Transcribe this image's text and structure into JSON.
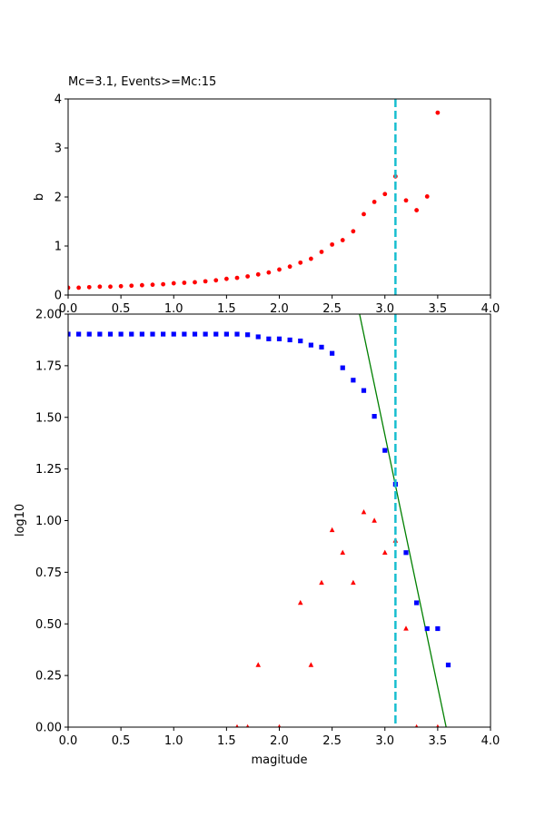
{
  "chart_data": [
    {
      "type": "scatter",
      "title": "Mc=3.1, Events>=Mc:15",
      "xlabel": "",
      "ylabel": "b",
      "xlim": [
        0,
        4
      ],
      "ylim": [
        0,
        4
      ],
      "xticks": [
        "0.0",
        "0.5",
        "1.0",
        "1.5",
        "2.0",
        "2.5",
        "3.0",
        "3.5",
        "4.0"
      ],
      "yticks": [
        "0",
        "1",
        "2",
        "3",
        "4"
      ],
      "grid": false,
      "mc_line": {
        "x": 3.1,
        "color": "#17becf",
        "style": "dashed"
      },
      "series": [
        {
          "marker": "circle",
          "color": "#ff0000",
          "points": [
            [
              0.0,
              0.15
            ],
            [
              0.1,
              0.15
            ],
            [
              0.2,
              0.16
            ],
            [
              0.3,
              0.17
            ],
            [
              0.4,
              0.17
            ],
            [
              0.5,
              0.18
            ],
            [
              0.6,
              0.19
            ],
            [
              0.7,
              0.2
            ],
            [
              0.8,
              0.21
            ],
            [
              0.9,
              0.22
            ],
            [
              1.0,
              0.24
            ],
            [
              1.1,
              0.25
            ],
            [
              1.2,
              0.26
            ],
            [
              1.3,
              0.28
            ],
            [
              1.4,
              0.3
            ],
            [
              1.5,
              0.33
            ],
            [
              1.6,
              0.35
            ],
            [
              1.7,
              0.38
            ],
            [
              1.8,
              0.42
            ],
            [
              1.9,
              0.46
            ],
            [
              2.0,
              0.52
            ],
            [
              2.1,
              0.58
            ],
            [
              2.2,
              0.66
            ],
            [
              2.3,
              0.74
            ],
            [
              2.4,
              0.88
            ],
            [
              2.5,
              1.03
            ],
            [
              2.6,
              1.12
            ],
            [
              2.7,
              1.3
            ],
            [
              2.8,
              1.65
            ],
            [
              2.9,
              1.9
            ],
            [
              3.0,
              2.06
            ],
            [
              3.1,
              2.42
            ],
            [
              3.2,
              1.93
            ],
            [
              3.3,
              1.73
            ],
            [
              3.4,
              2.01
            ],
            [
              3.5,
              3.72
            ]
          ]
        }
      ]
    },
    {
      "type": "scatter",
      "title": "",
      "xlabel": "magitude",
      "ylabel": "log10",
      "xlim": [
        0,
        4
      ],
      "ylim": [
        0,
        2
      ],
      "xticks": [
        "0.0",
        "0.5",
        "1.0",
        "1.5",
        "2.0",
        "2.5",
        "3.0",
        "3.5",
        "4.0"
      ],
      "yticks": [
        "0.00",
        "0.25",
        "0.50",
        "0.75",
        "1.00",
        "1.25",
        "1.50",
        "1.75",
        "2.00"
      ],
      "grid": false,
      "mc_line": {
        "x": 3.1,
        "color": "#17becf",
        "style": "dashed"
      },
      "fit_line": {
        "points": [
          [
            2.76,
            2.0
          ],
          [
            3.58,
            0.0
          ]
        ],
        "color": "#008000"
      },
      "series": [
        {
          "marker": "square",
          "color": "#0000ff",
          "points": [
            [
              0.0,
              1.903
            ],
            [
              0.1,
              1.903
            ],
            [
              0.2,
              1.903
            ],
            [
              0.3,
              1.903
            ],
            [
              0.4,
              1.903
            ],
            [
              0.5,
              1.903
            ],
            [
              0.6,
              1.903
            ],
            [
              0.7,
              1.903
            ],
            [
              0.8,
              1.903
            ],
            [
              0.9,
              1.903
            ],
            [
              1.0,
              1.903
            ],
            [
              1.1,
              1.903
            ],
            [
              1.2,
              1.903
            ],
            [
              1.3,
              1.903
            ],
            [
              1.4,
              1.903
            ],
            [
              1.5,
              1.903
            ],
            [
              1.6,
              1.903
            ],
            [
              1.7,
              1.9
            ],
            [
              1.8,
              1.89
            ],
            [
              1.9,
              1.88
            ],
            [
              2.0,
              1.88
            ],
            [
              2.1,
              1.875
            ],
            [
              2.2,
              1.87
            ],
            [
              2.3,
              1.85
            ],
            [
              2.4,
              1.84
            ],
            [
              2.5,
              1.81
            ],
            [
              2.6,
              1.74
            ],
            [
              2.7,
              1.68
            ],
            [
              2.8,
              1.63
            ],
            [
              2.9,
              1.505
            ],
            [
              3.0,
              1.34
            ],
            [
              3.1,
              1.176
            ],
            [
              3.2,
              0.845
            ],
            [
              3.3,
              0.602
            ],
            [
              3.4,
              0.477
            ],
            [
              3.5,
              0.477
            ],
            [
              3.6,
              0.301
            ]
          ]
        },
        {
          "marker": "triangle",
          "color": "#ff0000",
          "points": [
            [
              1.6,
              0.0
            ],
            [
              1.7,
              0.0
            ],
            [
              1.8,
              0.301
            ],
            [
              2.0,
              0.0
            ],
            [
              2.2,
              0.602
            ],
            [
              2.3,
              0.301
            ],
            [
              2.4,
              0.699
            ],
            [
              2.5,
              0.954
            ],
            [
              2.6,
              0.845
            ],
            [
              2.7,
              0.699
            ],
            [
              2.8,
              1.041
            ],
            [
              2.9,
              1.0
            ],
            [
              3.0,
              0.845
            ],
            [
              3.1,
              0.903
            ],
            [
              3.2,
              0.477
            ],
            [
              3.3,
              0.0
            ],
            [
              3.5,
              0.0
            ]
          ]
        }
      ]
    }
  ]
}
